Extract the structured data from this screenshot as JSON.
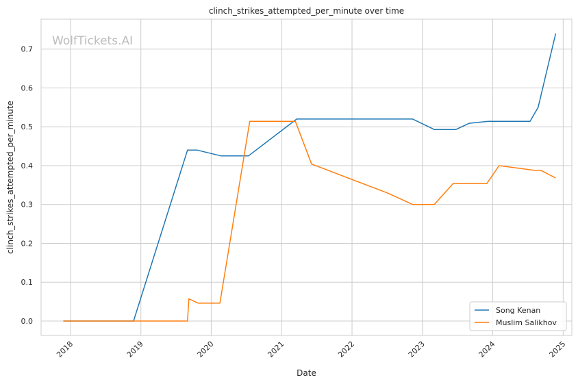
{
  "chart_data": {
    "type": "line",
    "title": "clinch_strikes_attempted_per_minute over time",
    "xlabel": "Date",
    "ylabel": "clinch_strikes_attempted_per_minute",
    "watermark": "WolfTickets.AI",
    "xlim": [
      "2017-08-01",
      "2025-02-15"
    ],
    "ylim": [
      -0.037,
      0.777
    ],
    "x_ticks": [
      "2018",
      "2019",
      "2020",
      "2021",
      "2022",
      "2023",
      "2024",
      "2025"
    ],
    "y_ticks": [
      "0.0",
      "0.1",
      "0.2",
      "0.3",
      "0.4",
      "0.5",
      "0.6",
      "0.7"
    ],
    "grid": true,
    "legend_position": "lower-right",
    "colors": {
      "song": "#1f77b4",
      "muslim": "#ff7f0e",
      "grid": "#cccccc",
      "spine": "#cccccc"
    },
    "series": [
      {
        "name": "Song Kenan",
        "color": "#1f77b4",
        "points": [
          [
            "2017-11-25",
            0.0
          ],
          [
            "2018-11-24",
            0.0
          ],
          [
            "2019-08-31",
            0.44
          ],
          [
            "2019-10-20",
            0.44
          ],
          [
            "2020-02-22",
            0.425
          ],
          [
            "2020-07-12",
            0.425
          ],
          [
            "2021-03-20",
            0.52
          ],
          [
            "2022-11-12",
            0.52
          ],
          [
            "2023-03-04",
            0.493
          ],
          [
            "2023-06-24",
            0.493
          ],
          [
            "2023-09-02",
            0.509
          ],
          [
            "2023-12-09",
            0.514
          ],
          [
            "2024-07-13",
            0.514
          ],
          [
            "2024-08-24",
            0.55
          ],
          [
            "2024-11-23",
            0.74
          ]
        ]
      },
      {
        "name": "Muslim Salikhov",
        "color": "#ff7f0e",
        "points": [
          [
            "2017-11-25",
            0.0
          ],
          [
            "2019-08-31",
            0.0
          ],
          [
            "2019-09-07",
            0.057
          ],
          [
            "2019-10-26",
            0.046
          ],
          [
            "2020-02-15",
            0.046
          ],
          [
            "2020-07-19",
            0.514
          ],
          [
            "2021-03-13",
            0.514
          ],
          [
            "2021-06-05",
            0.404
          ],
          [
            "2022-07-02",
            0.33
          ],
          [
            "2022-11-12",
            0.3
          ],
          [
            "2023-03-04",
            0.3
          ],
          [
            "2023-06-10",
            0.354
          ],
          [
            "2023-12-02",
            0.354
          ],
          [
            "2024-02-03",
            0.4
          ],
          [
            "2024-08-03",
            0.388
          ],
          [
            "2024-09-07",
            0.388
          ],
          [
            "2024-11-23",
            0.368
          ]
        ]
      }
    ]
  }
}
